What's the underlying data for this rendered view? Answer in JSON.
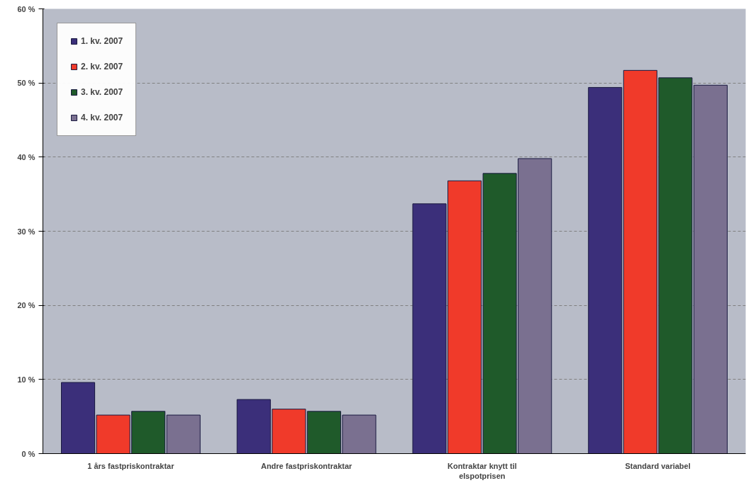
{
  "chart_data": {
    "type": "bar",
    "categories": [
      "1 års fastpriskontraktar",
      "Andre fastpriskontraktar",
      "Kontraktar knytt til\nelspotprisen",
      "Standard variabel"
    ],
    "series": [
      {
        "name": "1. kv. 2007",
        "color": "#3b2f7a",
        "values": [
          9.6,
          7.3,
          33.7,
          49.4
        ]
      },
      {
        "name": "2. kv. 2007",
        "color": "#f03a2a",
        "values": [
          5.2,
          6.0,
          36.8,
          51.7
        ]
      },
      {
        "name": "3. kv. 2007",
        "color": "#1f5a2a",
        "values": [
          5.7,
          5.7,
          37.8,
          50.7
        ]
      },
      {
        "name": "4. kv. 2007",
        "color": "#7a7090",
        "values": [
          5.2,
          5.2,
          39.8,
          49.7
        ]
      }
    ],
    "ylim": [
      0,
      60
    ],
    "yticks": [
      {
        "value": 0,
        "label": "0 %"
      },
      {
        "value": 10,
        "label": "10 %"
      },
      {
        "value": 20,
        "label": "20 %"
      },
      {
        "value": 30,
        "label": "30 %"
      },
      {
        "value": 40,
        "label": "40 %"
      },
      {
        "value": 50,
        "label": "50 %"
      },
      {
        "value": 60,
        "label": "60 %"
      }
    ],
    "grid": "y",
    "legend": "top left"
  }
}
